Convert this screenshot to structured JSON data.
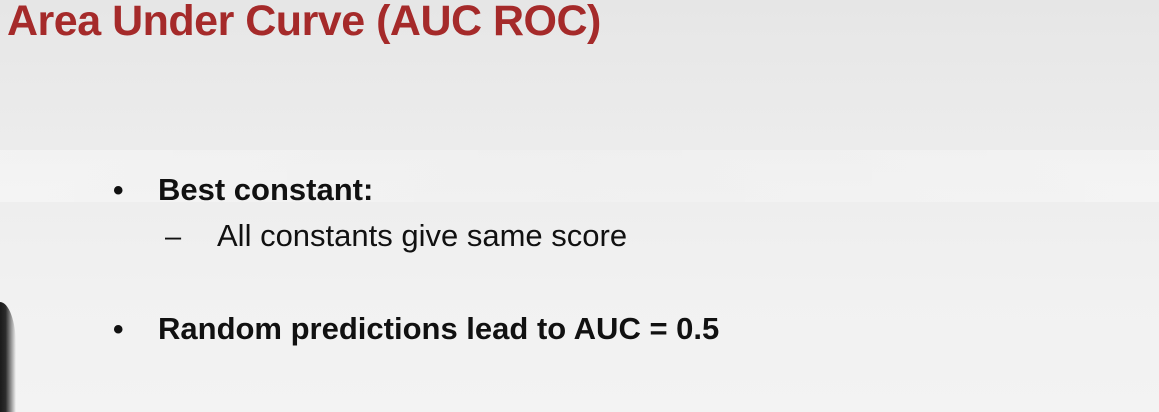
{
  "slide": {
    "title": "Area Under Curve (AUC ROC)",
    "bullets": [
      {
        "marker": "•",
        "text": "Best constant:",
        "subitems": [
          {
            "marker": "–",
            "text": "All constants give same score"
          }
        ]
      },
      {
        "marker": "•",
        "text": "Random predictions lead to AUC = 0.5"
      }
    ]
  },
  "colors": {
    "title": "#a52a2a",
    "text": "#111111",
    "background": "#ececec"
  }
}
